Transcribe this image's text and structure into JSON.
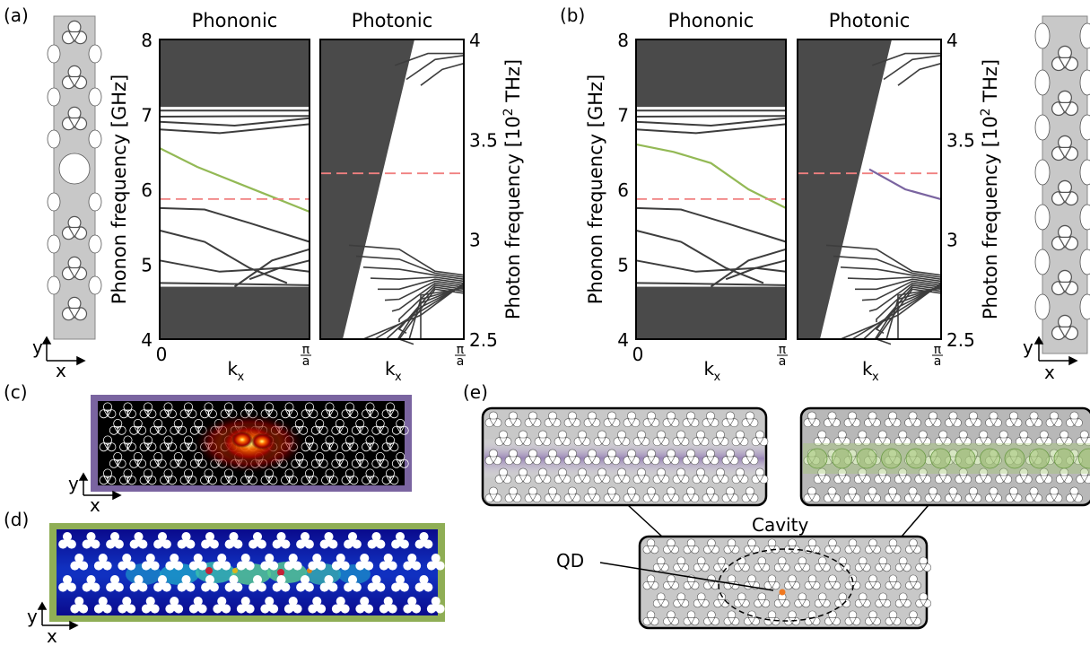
{
  "panels": {
    "a": "(a)",
    "b": "(b)",
    "c": "(c)",
    "d": "(d)",
    "e": "(e)"
  },
  "titles": {
    "phononic": "Phononic",
    "photonic": "Photonic"
  },
  "axes": {
    "phonon_ylabel": "Phonon frequency [GHz]",
    "photon_ylabel_main": "Photon frequency [10",
    "photon_ylabel_sup": "2",
    "photon_ylabel_end": " THz]",
    "x_zero": "0",
    "x_k": "k",
    "x_k_sub": "x",
    "x_end_num": "π",
    "x_end_den": "a",
    "phonon_ticks": [
      "4",
      "5",
      "6",
      "7",
      "8"
    ],
    "photon_ticks": [
      "2.5",
      "3",
      "3.5",
      "4"
    ]
  },
  "coord": {
    "x": "x",
    "y": "y"
  },
  "panel_e": {
    "cavity": "Cavity",
    "qd": "QD"
  },
  "colors": {
    "band_fill": "#4a4a4a",
    "band_line": "#3d3d3d",
    "phonon_mode": "#93b955",
    "photon_mode": "#7a64a0",
    "dashed": "#f08080",
    "slab": "#c8c8c8",
    "mechanical_frame": "#8fae55",
    "optical_frame": "#7a64a0",
    "qd_dot": "#f07820"
  },
  "chart_data": [
    {
      "type": "line",
      "panel": "(a) Phononic",
      "title": "Phononic",
      "xlabel": "kx",
      "ylabel": "Phonon frequency [GHz]",
      "xlim": [
        0,
        1
      ],
      "ylim": [
        4,
        8
      ],
      "x_ticks": [
        "0",
        "π/a"
      ],
      "grid": false,
      "bandgap": [
        4.7,
        7.1
      ],
      "highlight_mode": {
        "x": [
          0,
          0.25,
          0.5,
          0.75,
          1
        ],
        "y": [
          6.55,
          6.3,
          6.1,
          5.9,
          5.7
        ]
      },
      "dashed_level": 5.87
    },
    {
      "type": "line",
      "panel": "(a) Photonic",
      "title": "Photonic",
      "xlabel": "kx",
      "ylabel": "Photon frequency [10^2 THz]",
      "xlim": [
        0,
        1
      ],
      "ylim": [
        2.5,
        4
      ],
      "x_ticks": [
        "0",
        "π/a"
      ],
      "grid": false,
      "dashed_level": 3.33
    },
    {
      "type": "line",
      "panel": "(b) Phononic",
      "title": "Phononic",
      "xlabel": "kx",
      "ylabel": "Phonon frequency [GHz]",
      "xlim": [
        0,
        1
      ],
      "ylim": [
        4,
        8
      ],
      "x_ticks": [
        "0",
        "π/a"
      ],
      "grid": false,
      "bandgap": [
        4.7,
        7.1
      ],
      "highlight_mode": {
        "x": [
          0,
          0.25,
          0.5,
          0.75,
          1
        ],
        "y": [
          6.6,
          6.5,
          6.35,
          6.0,
          5.75
        ]
      },
      "dashed_level": 5.87
    },
    {
      "type": "line",
      "panel": "(b) Photonic",
      "title": "Photonic",
      "xlabel": "kx",
      "ylabel": "Photon frequency [10^2 THz]",
      "xlim": [
        0,
        1
      ],
      "ylim": [
        2.5,
        4
      ],
      "x_ticks": [
        "0",
        "π/a"
      ],
      "grid": false,
      "highlight_mode": {
        "x": [
          0.5,
          0.75,
          1
        ],
        "y": [
          3.35,
          3.25,
          3.2
        ]
      },
      "dashed_level": 3.33
    }
  ]
}
